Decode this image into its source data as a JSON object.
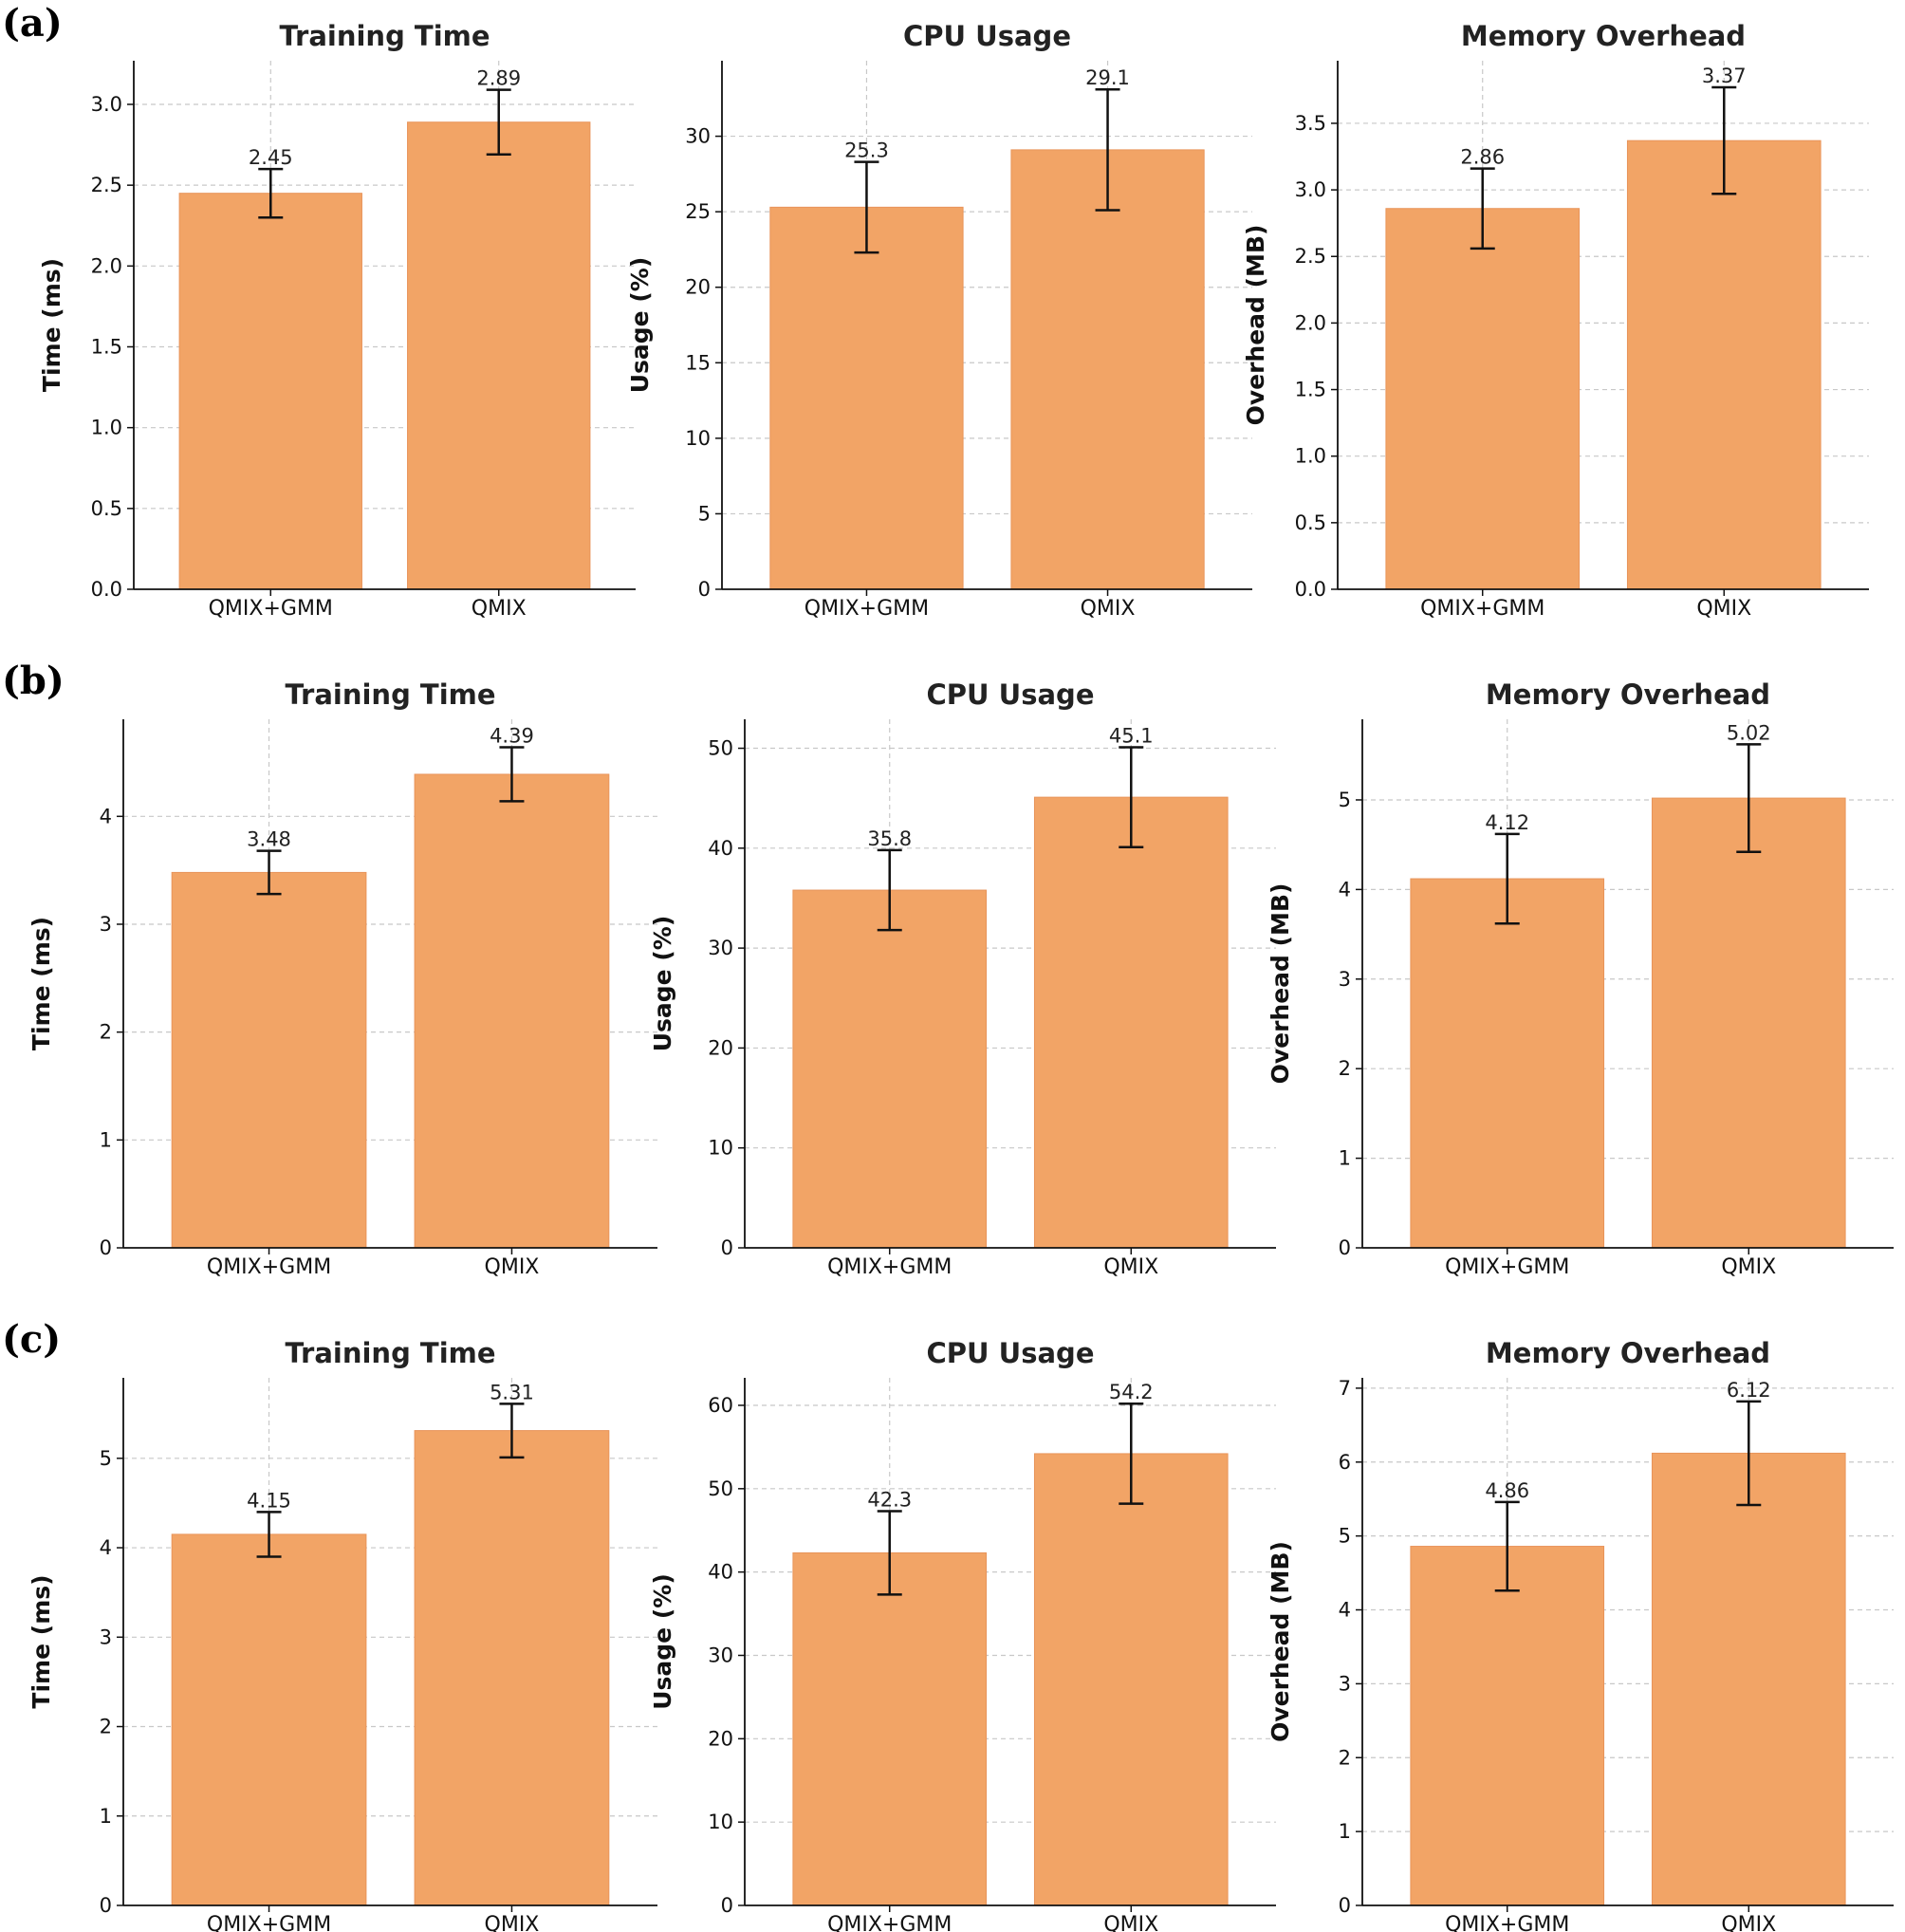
{
  "colors": {
    "bar": "#F2A466",
    "bar_edge": "#E8945A",
    "axis": "#111111",
    "grid": "#c8c8c8"
  },
  "chart_data": [
    {
      "panel": "(a)",
      "type": "bar",
      "title": "Training Time",
      "ylabel": "Time (ms)",
      "categories": [
        "QMIX+GMM",
        "QMIX"
      ],
      "values": [
        2.45,
        2.89
      ],
      "errors": [
        0.15,
        0.2
      ],
      "value_labels": [
        "2.45",
        "2.89"
      ],
      "ylim": [
        0,
        3.27
      ],
      "yticks": [
        0,
        0.5,
        1,
        1.5,
        2,
        2.5,
        3
      ],
      "ytick_labels": [
        "0.0",
        "0.5",
        "1.0",
        "1.5",
        "2.0",
        "2.5",
        "3.0"
      ]
    },
    {
      "panel": "(a)",
      "type": "bar",
      "title": "CPU Usage",
      "ylabel": "Usage (%)",
      "categories": [
        "QMIX+GMM",
        "QMIX"
      ],
      "values": [
        25.3,
        29.1
      ],
      "errors": [
        3.0,
        4.0
      ],
      "value_labels": [
        "25.3",
        "29.1"
      ],
      "ylim": [
        0,
        35
      ],
      "yticks": [
        0,
        5,
        10,
        15,
        20,
        25,
        30
      ],
      "ytick_labels": [
        "0",
        "5",
        "10",
        "15",
        "20",
        "25",
        "30"
      ]
    },
    {
      "panel": "(a)",
      "type": "bar",
      "title": "Memory Overhead",
      "ylabel": "Overhead (MB)",
      "categories": [
        "QMIX+GMM",
        "QMIX"
      ],
      "values": [
        2.86,
        3.37
      ],
      "errors": [
        0.3,
        0.4
      ],
      "value_labels": [
        "2.86",
        "3.37"
      ],
      "ylim": [
        0,
        3.97
      ],
      "yticks": [
        0,
        0.5,
        1,
        1.5,
        2,
        2.5,
        3,
        3.5
      ],
      "ytick_labels": [
        "0.0",
        "0.5",
        "1.0",
        "1.5",
        "2.0",
        "2.5",
        "3.0",
        "3.5"
      ]
    },
    {
      "panel": "(b)",
      "type": "bar",
      "title": "Training Time",
      "ylabel": "Time (ms)",
      "categories": [
        "QMIX+GMM",
        "QMIX"
      ],
      "values": [
        3.48,
        4.39
      ],
      "errors": [
        0.2,
        0.25
      ],
      "value_labels": [
        "3.48",
        "4.39"
      ],
      "ylim": [
        0,
        4.9
      ],
      "yticks": [
        0,
        1,
        2,
        3,
        4
      ],
      "ytick_labels": [
        "0",
        "1",
        "2",
        "3",
        "4"
      ]
    },
    {
      "panel": "(b)",
      "type": "bar",
      "title": "CPU Usage",
      "ylabel": "Usage (%)",
      "categories": [
        "QMIX+GMM",
        "QMIX"
      ],
      "values": [
        35.8,
        45.1
      ],
      "errors": [
        4.0,
        5.0
      ],
      "value_labels": [
        "35.8",
        "45.1"
      ],
      "ylim": [
        0,
        52.9
      ],
      "yticks": [
        0,
        10,
        20,
        30,
        40,
        50
      ],
      "ytick_labels": [
        "0",
        "10",
        "20",
        "30",
        "40",
        "50"
      ]
    },
    {
      "panel": "(b)",
      "type": "bar",
      "title": "Memory Overhead",
      "ylabel": "Overhead (MB)",
      "categories": [
        "QMIX+GMM",
        "QMIX"
      ],
      "values": [
        4.12,
        5.02
      ],
      "errors": [
        0.5,
        0.6
      ],
      "value_labels": [
        "4.12",
        "5.02"
      ],
      "ylim": [
        0,
        5.9
      ],
      "yticks": [
        0,
        1,
        2,
        3,
        4,
        5
      ],
      "ytick_labels": [
        "0",
        "1",
        "2",
        "3",
        "4",
        "5"
      ]
    },
    {
      "panel": "(c)",
      "type": "bar",
      "title": "Training Time",
      "ylabel": "Time (ms)",
      "categories": [
        "QMIX+GMM",
        "QMIX"
      ],
      "values": [
        4.15,
        5.31
      ],
      "errors": [
        0.25,
        0.3
      ],
      "value_labels": [
        "4.15",
        "5.31"
      ],
      "ylim": [
        0,
        5.9
      ],
      "yticks": [
        0,
        1,
        2,
        3,
        4,
        5
      ],
      "ytick_labels": [
        "0",
        "1",
        "2",
        "3",
        "4",
        "5"
      ]
    },
    {
      "panel": "(c)",
      "type": "bar",
      "title": "CPU Usage",
      "ylabel": "Usage (%)",
      "categories": [
        "QMIX+GMM",
        "QMIX"
      ],
      "values": [
        42.3,
        54.2
      ],
      "errors": [
        5.0,
        6.0
      ],
      "value_labels": [
        "42.3",
        "54.2"
      ],
      "ylim": [
        0,
        63.3
      ],
      "yticks": [
        0,
        10,
        20,
        30,
        40,
        50,
        60
      ],
      "ytick_labels": [
        "0",
        "10",
        "20",
        "30",
        "40",
        "50",
        "60"
      ]
    },
    {
      "panel": "(c)",
      "type": "bar",
      "title": "Memory Overhead",
      "ylabel": "Overhead (MB)",
      "categories": [
        "QMIX+GMM",
        "QMIX"
      ],
      "values": [
        4.86,
        6.12
      ],
      "errors": [
        0.6,
        0.7
      ],
      "value_labels": [
        "4.86",
        "6.12"
      ],
      "ylim": [
        0,
        7.14
      ],
      "yticks": [
        0,
        1,
        2,
        3,
        4,
        5,
        6,
        7
      ],
      "ytick_labels": [
        "0",
        "1",
        "2",
        "3",
        "4",
        "5",
        "6",
        "7"
      ]
    }
  ]
}
